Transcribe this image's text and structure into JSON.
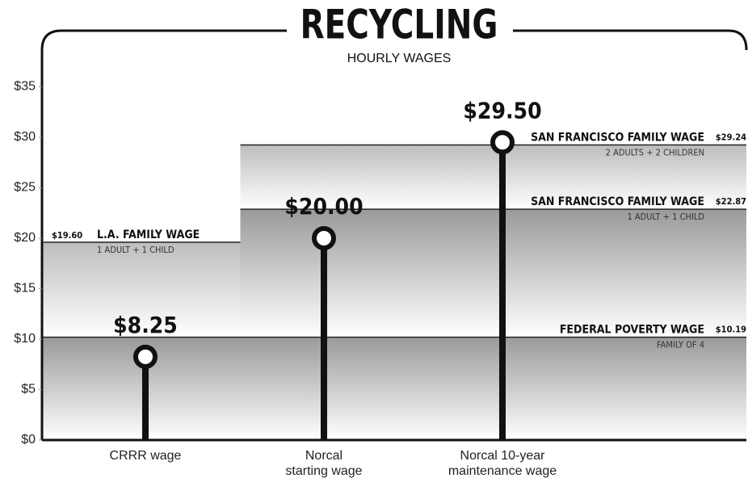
{
  "chart_data": {
    "type": "lollipop",
    "title": "RECYCLING",
    "subtitle": "HOURLY WAGES",
    "categories": [
      "CRRR wage",
      "Norcal starting wage",
      "Norcal 10-year maintenance wage"
    ],
    "values": [
      8.25,
      20.0,
      29.5
    ],
    "value_labels": [
      "$8.25",
      "$20.00",
      "$29.50"
    ],
    "color": "#111111",
    "ylim": [
      0,
      40
    ],
    "yticks": [
      {
        "value": 0,
        "label": "$0"
      },
      {
        "value": 5,
        "label": "$5"
      },
      {
        "value": 10,
        "label": "$10"
      },
      {
        "value": 15,
        "label": "$15"
      },
      {
        "value": 20,
        "label": "$20"
      },
      {
        "value": 25,
        "label": "$25"
      },
      {
        "value": 30,
        "label": "$30"
      },
      {
        "value": 35,
        "label": "$35"
      }
    ],
    "reference_lines": [
      {
        "name": "L.A. FAMILY WAGE",
        "note": "1 ADULT + 1 CHILD",
        "value": 19.6,
        "value_label": "$19.60"
      },
      {
        "name": "SAN FRANCISCO FAMILY WAGE",
        "note": "2 ADULTS + 2 CHILDREN",
        "value": 29.24,
        "value_label": "$29.24"
      },
      {
        "name": "SAN FRANCISCO FAMILY WAGE",
        "note": "1 ADULT + 1 CHILD",
        "value": 22.87,
        "value_label": "$22.87"
      },
      {
        "name": "FEDERAL POVERTY WAGE",
        "note": "FAMILY OF 4",
        "value": 10.19,
        "value_label": "$10.19"
      }
    ]
  }
}
